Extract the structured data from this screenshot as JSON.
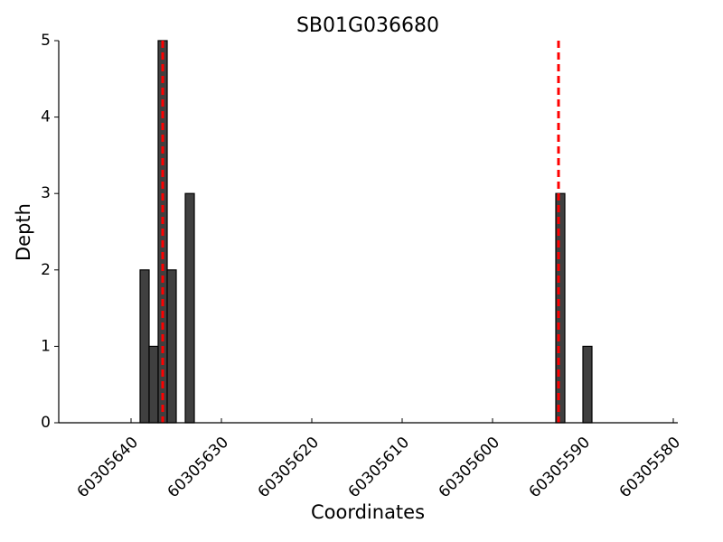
{
  "chart_data": {
    "type": "bar",
    "title": "SB01G036680",
    "xlabel": "Coordinates",
    "ylabel": "Depth",
    "x": [
      60305639,
      60305638,
      60305637,
      60305636,
      60305634,
      60305593,
      60305590
    ],
    "values": [
      2,
      1,
      5,
      2,
      3,
      3,
      1
    ],
    "bar_width": 1,
    "color": "#404040",
    "vlines": [
      60305636.5,
      60305592.7
    ],
    "vline_color": "#ff0000",
    "xlim": [
      60305648,
      60305579.5
    ],
    "xticks": [
      60305640,
      60305630,
      60305620,
      60305610,
      60305600,
      60305590,
      60305580
    ],
    "ylim": [
      0,
      5
    ],
    "yticks": [
      0,
      1,
      2,
      3,
      4,
      5
    ],
    "grid": false
  }
}
